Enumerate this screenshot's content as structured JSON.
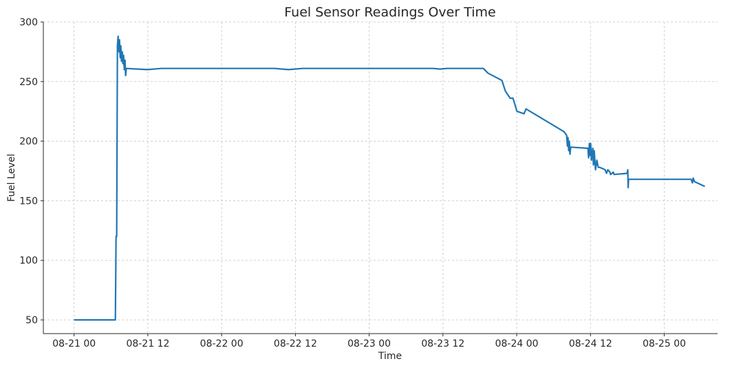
{
  "chart_data": {
    "type": "line",
    "title": "Fuel Sensor Readings Over Time",
    "xlabel": "Time",
    "ylabel": "Fuel Level",
    "xlim": [
      "08-20 19:00",
      "08-25 08:40"
    ],
    "ylim": [
      38.5,
      300
    ],
    "x_ticks": [
      "08-21 00",
      "08-21 12",
      "08-22 00",
      "08-22 12",
      "08-23 00",
      "08-23 12",
      "08-24 00",
      "08-24 12",
      "08-25 00"
    ],
    "y_ticks": [
      50,
      100,
      150,
      200,
      250,
      300
    ],
    "grid": true,
    "line_color": "#1f77b4",
    "series": [
      {
        "x": [
          "08-21 00:00",
          "08-21 06:43",
          "08-21 06:50",
          "08-21 06:56",
          "08-21 07:03",
          "08-21 07:10",
          "08-21 07:16",
          "08-21 07:23",
          "08-21 07:30",
          "08-21 07:36",
          "08-21 07:43",
          "08-21 07:50",
          "08-21 07:57",
          "08-21 08:03",
          "08-21 08:10",
          "08-21 08:17",
          "08-21 08:23",
          "08-21 08:30",
          "08-21 10:18",
          "08-21 11:58",
          "08-21 14:13",
          "08-22 08:40",
          "08-22 09:47",
          "08-22 10:55",
          "08-22 13:09",
          "08-23 10:24",
          "08-23 11:31",
          "08-23 12:39",
          "08-23 18:34",
          "08-23 19:21",
          "08-23 21:35",
          "08-23 22:09",
          "08-23 22:56",
          "08-23 23:23",
          "08-24 00:03",
          "08-24 01:11",
          "08-24 01:31",
          "08-24 07:40",
          "08-24 08:07",
          "08-24 08:14",
          "08-24 08:20",
          "08-24 08:27",
          "08-24 08:34",
          "08-24 08:40",
          "08-24 08:47",
          "08-24 11:35",
          "08-24 11:42",
          "08-24 11:49",
          "08-24 11:55",
          "08-24 12:02",
          "08-24 12:09",
          "08-24 12:22",
          "08-24 12:29",
          "08-24 12:36",
          "08-24 12:49",
          "08-24 13:02",
          "08-24 13:16",
          "08-24 13:29",
          "08-24 14:23",
          "08-24 14:36",
          "08-24 14:50",
          "08-24 15:10",
          "08-24 15:16",
          "08-24 15:43",
          "08-24 15:50",
          "08-24 17:58",
          "08-24 18:04",
          "08-24 18:08",
          "08-24 18:11",
          "08-25 04:22",
          "08-25 04:35",
          "08-25 04:42",
          "08-25 04:55",
          "08-25 06:36"
        ],
        "y": [
          50,
          50,
          120,
          120,
          280,
          288,
          275,
          285,
          270,
          280,
          267,
          275,
          265,
          272,
          260,
          268,
          255,
          261,
          260.5,
          260,
          261,
          261,
          260.5,
          260,
          261,
          261,
          260.5,
          261,
          261,
          257,
          251,
          242,
          236,
          236,
          225,
          223,
          227,
          208,
          205,
          196,
          203,
          192,
          200,
          189,
          195,
          194,
          186,
          198,
          188,
          198,
          184,
          194,
          180,
          192,
          176,
          184,
          178,
          178,
          176,
          173,
          176,
          174,
          172,
          174,
          172,
          173,
          176,
          161,
          168,
          168,
          165,
          169,
          166,
          162
        ]
      }
    ]
  }
}
